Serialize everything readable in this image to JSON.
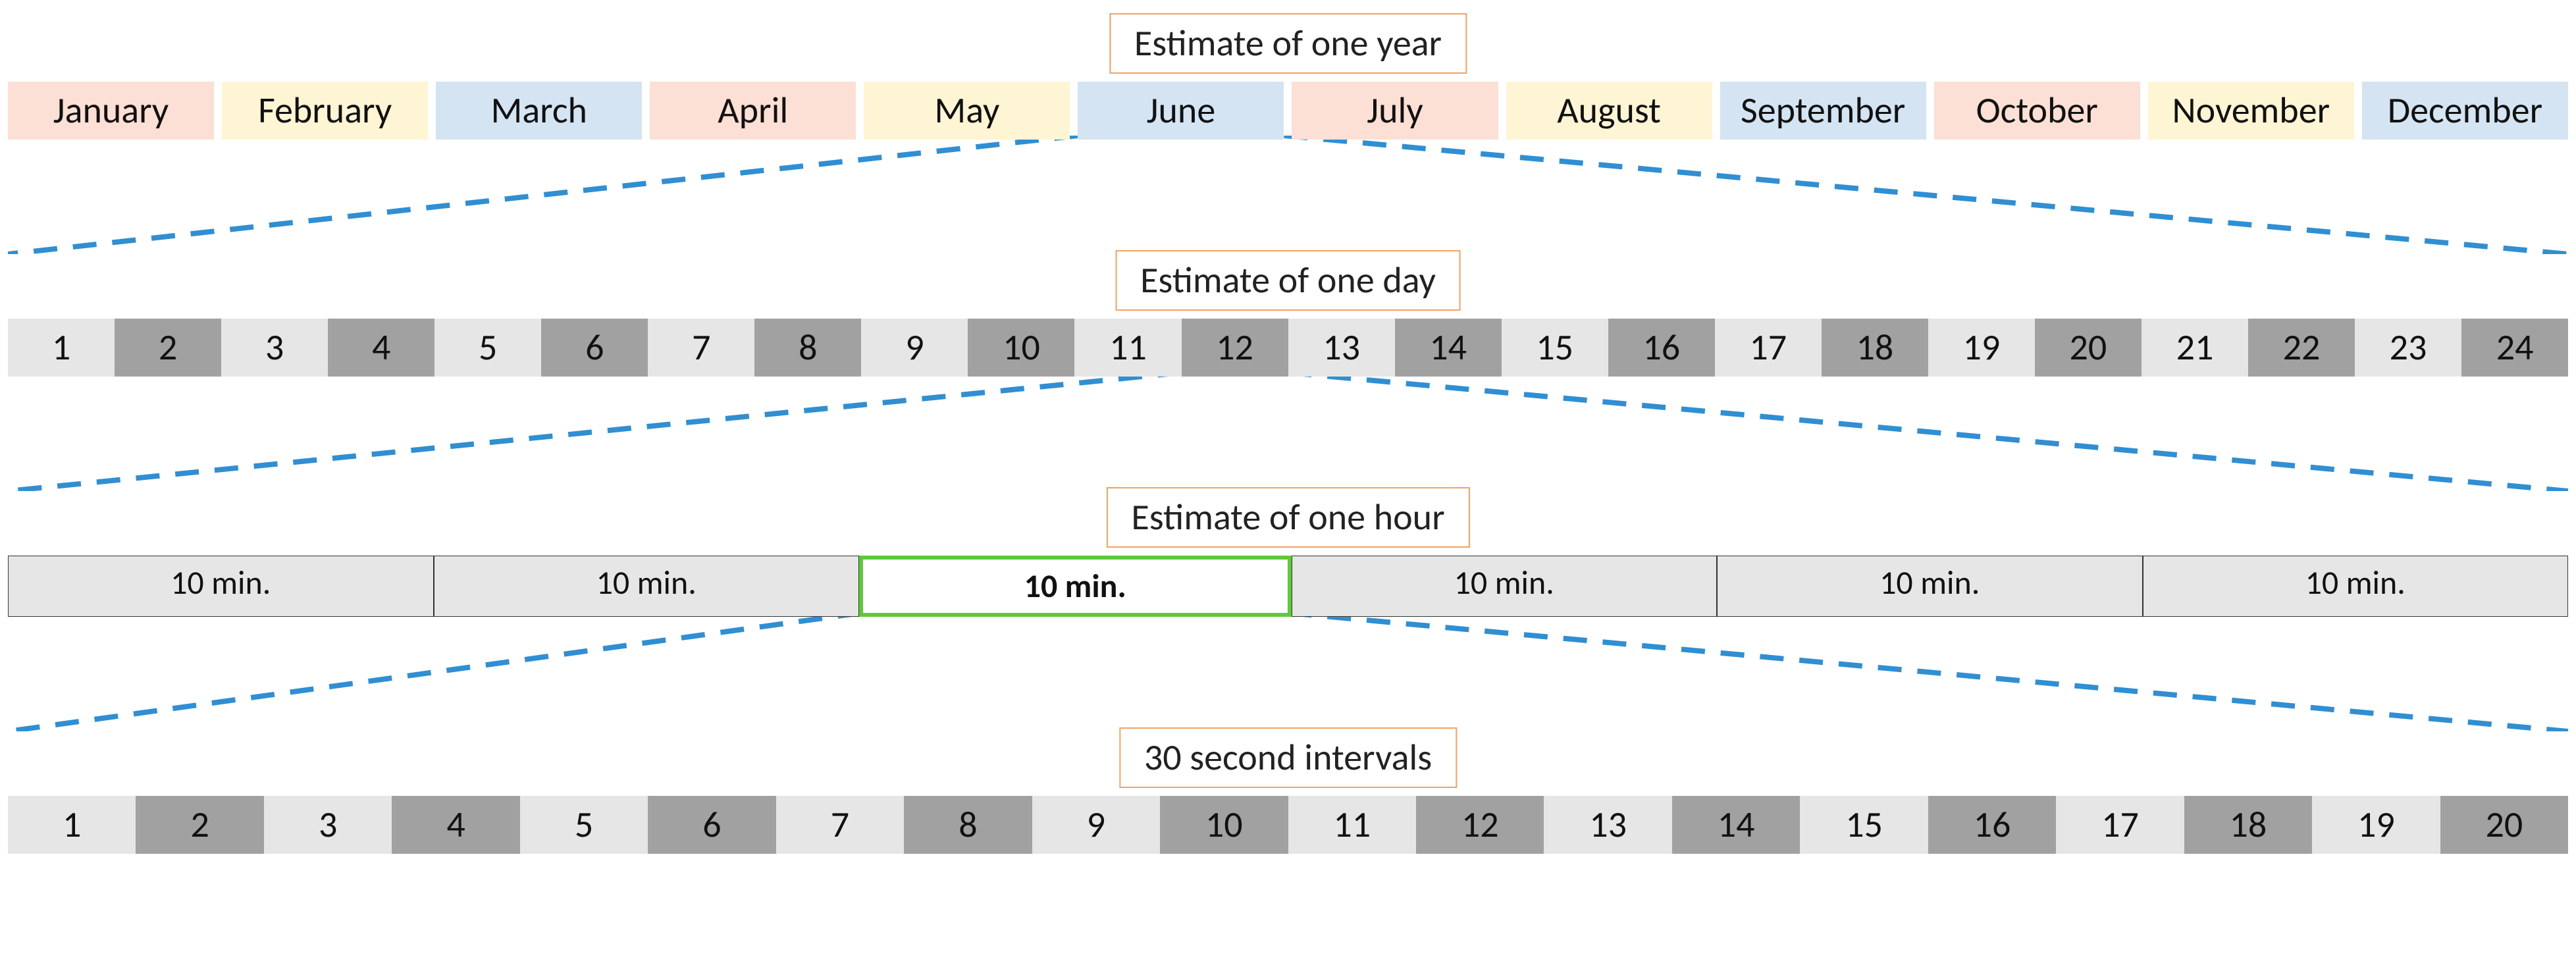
{
  "titles": {
    "year": "Estimate of one year",
    "day": "Estimate of one day",
    "hour": "Estimate of one hour",
    "intervals": "30 second intervals"
  },
  "months": {
    "items": [
      {
        "label": "January",
        "color": "#fde0d5"
      },
      {
        "label": "February",
        "color": "#fef5d5"
      },
      {
        "label": "March",
        "color": "#d5e4f2"
      },
      {
        "label": "April",
        "color": "#fde0d5"
      },
      {
        "label": "May",
        "color": "#fef5d5"
      },
      {
        "label": "June",
        "color": "#d5e4f2"
      },
      {
        "label": "July",
        "color": "#fde0d5"
      },
      {
        "label": "August",
        "color": "#fef5d5"
      },
      {
        "label": "September",
        "color": "#d5e4f2"
      },
      {
        "label": "October",
        "color": "#fde0d5"
      },
      {
        "label": "November",
        "color": "#fef5d5"
      },
      {
        "label": "December",
        "color": "#d5e4f2"
      }
    ],
    "zoom_index": 5
  },
  "hours": {
    "count": 24,
    "alt_colors": [
      "#e6e6e6",
      "#a1a1a1"
    ],
    "zoom_index": 11
  },
  "tenmin": {
    "items": [
      "10 min.",
      "10 min.",
      "10 min.",
      "10 min.",
      "10 min.",
      "10 min."
    ],
    "highlight_index": 2,
    "bg_color": "#e6e6e6",
    "highlight_border": "#5fc83b"
  },
  "intervals": {
    "count": 20,
    "alt_colors": [
      "#e6e6e6",
      "#a1a1a1"
    ]
  },
  "style": {
    "title_border": "#f4a261",
    "dash_color": "#2f8fd2",
    "font_family": "Segoe UI, Calibri, Arial, sans-serif",
    "title_fontsize": 56,
    "cell_fontsize": 56
  }
}
